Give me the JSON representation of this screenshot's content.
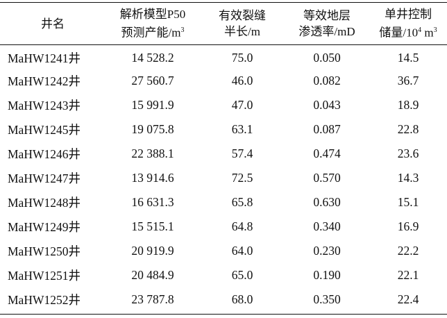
{
  "table": {
    "headers": {
      "well_name": "井名",
      "p50_line1": "解析模型P50",
      "p50_line2": "预测产能/m",
      "p50_sup": "3",
      "half_line1": "有效裂缝",
      "half_line2": "半长/m",
      "perm_line1": "等效地层",
      "perm_line2": "渗透率/mD",
      "res_line1": "单井控制",
      "res_line2_pre": "储量/10",
      "res_sup1": "4",
      "res_mid": " m",
      "res_sup2": "3"
    },
    "rows": [
      {
        "well": "MaHW1241井",
        "p50": "14 528.2",
        "half_length": "75.0",
        "permeability": "0.050",
        "reserves": "14.5"
      },
      {
        "well": "MaHW1242井",
        "p50": "27 560.7",
        "half_length": "46.0",
        "permeability": "0.082",
        "reserves": "36.7"
      },
      {
        "well": "MaHW1243井",
        "p50": "15 991.9",
        "half_length": "47.0",
        "permeability": "0.043",
        "reserves": "18.9"
      },
      {
        "well": "MaHW1245井",
        "p50": "19 075.8",
        "half_length": "63.1",
        "permeability": "0.087",
        "reserves": "22.8"
      },
      {
        "well": "MaHW1246井",
        "p50": "22 388.1",
        "half_length": "57.4",
        "permeability": "0.474",
        "reserves": "23.6"
      },
      {
        "well": "MaHW1247井",
        "p50": "13 914.6",
        "half_length": "72.5",
        "permeability": "0.570",
        "reserves": "14.3"
      },
      {
        "well": "MaHW1248井",
        "p50": "16 631.3",
        "half_length": "65.8",
        "permeability": "0.630",
        "reserves": "15.1"
      },
      {
        "well": "MaHW1249井",
        "p50": "15 515.1",
        "half_length": "64.8",
        "permeability": "0.340",
        "reserves": "16.9"
      },
      {
        "well": "MaHW1250井",
        "p50": "20 919.9",
        "half_length": "64.0",
        "permeability": "0.230",
        "reserves": "22.2"
      },
      {
        "well": "MaHW1251井",
        "p50": "20 484.9",
        "half_length": "65.0",
        "permeability": "0.190",
        "reserves": "22.1"
      },
      {
        "well": "MaHW1252井",
        "p50": "23 787.8",
        "half_length": "68.0",
        "permeability": "0.350",
        "reserves": "22.4"
      }
    ]
  }
}
